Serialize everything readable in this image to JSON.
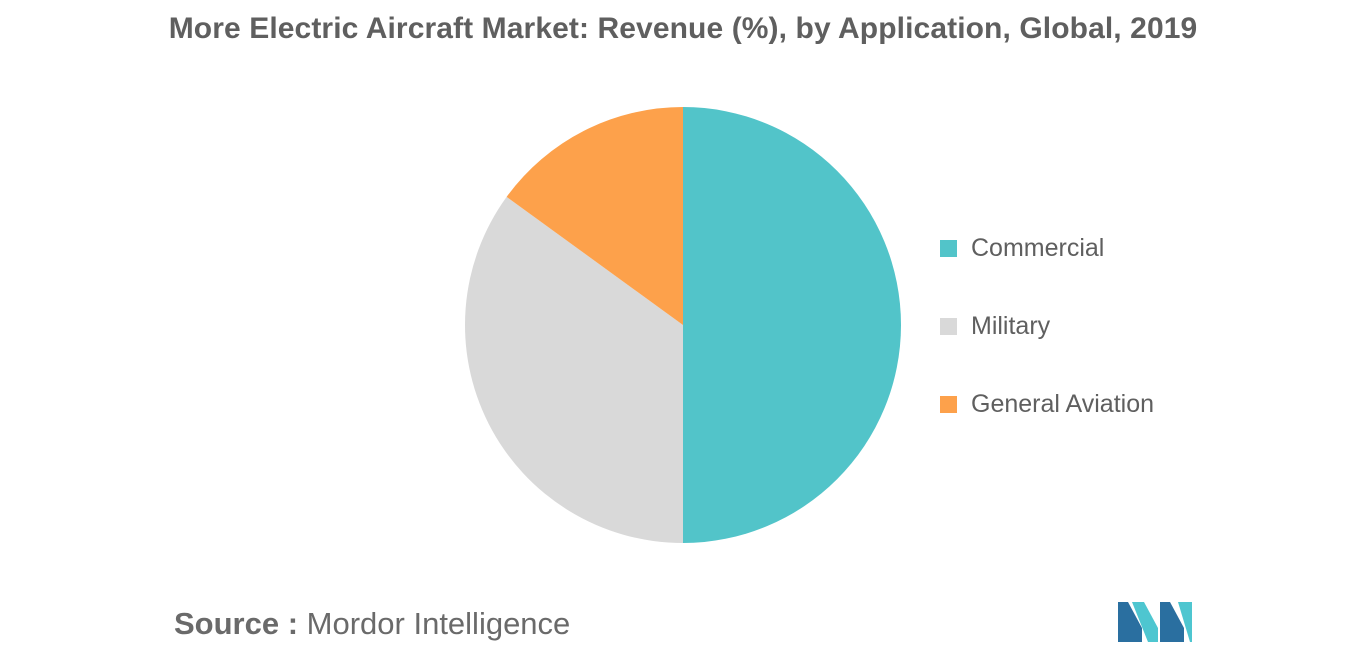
{
  "title": "More Electric Aircraft Market: Revenue (%), by Application, Global, 2019",
  "chart_data": {
    "type": "pie",
    "title": "More Electric Aircraft Market: Revenue (%), by Application, Global, 2019",
    "categories": [
      "Commercial",
      "Military",
      "General Aviation"
    ],
    "values": [
      50,
      35,
      15
    ],
    "colors": [
      "#52c4c9",
      "#d9d9d9",
      "#fda14b"
    ],
    "start_angle_deg": 0,
    "direction": "clockwise",
    "legend_position": "right"
  },
  "source": {
    "prefix": "Source :",
    "name": "Mordor Intelligence"
  },
  "logo": {
    "name": "mordor-intelligence-logo",
    "colors": [
      "#2a6fa0",
      "#4ec6d0"
    ]
  }
}
